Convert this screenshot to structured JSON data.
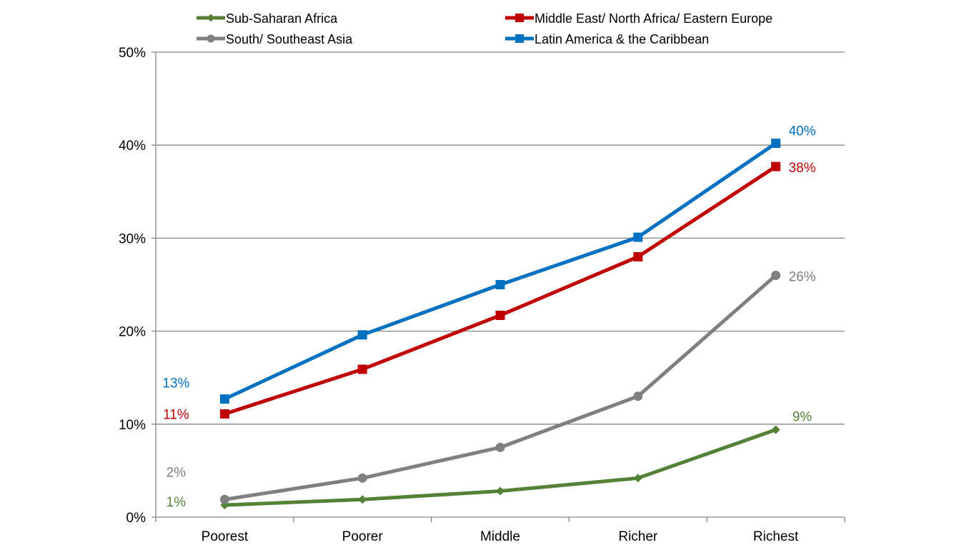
{
  "chart_data": {
    "type": "line",
    "categories": [
      "Poorest",
      "Poorer",
      "Middle",
      "Richer",
      "Richest"
    ],
    "ylim": [
      0,
      50
    ],
    "y_ticks": [
      "0%",
      "10%",
      "20%",
      "30%",
      "40%",
      "50%"
    ],
    "y_tick_values": [
      0,
      10,
      20,
      30,
      40,
      50
    ],
    "grid": true,
    "legend_position": "top",
    "series": [
      {
        "name": "Sub-Saharan Africa",
        "color": "#538135",
        "marker": "diamond",
        "values": [
          1.3,
          1.9,
          2.8,
          4.2,
          9.4
        ],
        "first_label": "1%",
        "last_label": "9%"
      },
      {
        "name": "Middle East/ North Africa/ Eastern Europe",
        "color": "#C00000",
        "marker": "square",
        "values": [
          11.1,
          15.9,
          21.7,
          28.0,
          37.7
        ],
        "first_label": "11%",
        "last_label": "38%"
      },
      {
        "name": "South/ Southeast Asia",
        "color": "#7F7F7F",
        "marker": "circle",
        "values": [
          1.9,
          4.2,
          7.5,
          13.0,
          26.0
        ],
        "first_label": "2%",
        "last_label": "26%"
      },
      {
        "name": "Latin America & the Caribbean",
        "color": "#0070C0",
        "marker": "square",
        "values": [
          12.7,
          19.6,
          25.0,
          30.1,
          40.2
        ],
        "first_label": "13%",
        "last_label": "40%"
      }
    ]
  }
}
